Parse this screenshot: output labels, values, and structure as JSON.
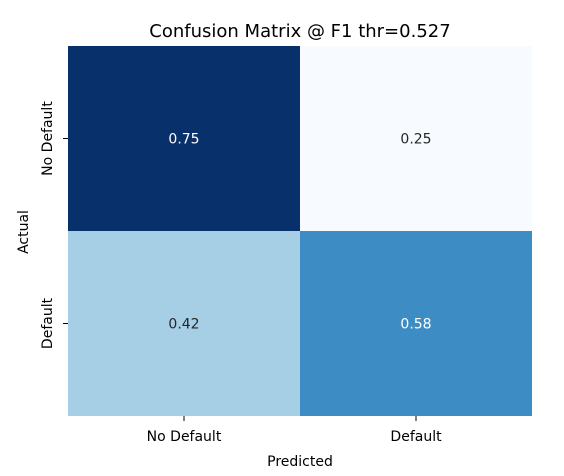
{
  "chart_data": {
    "type": "heatmap",
    "title": "Confusion Matrix @ F1 thr=0.527",
    "xlabel": "Predicted",
    "ylabel": "Actual",
    "x_categories": [
      "No Default",
      "Default"
    ],
    "y_categories": [
      "No Default",
      "Default"
    ],
    "values": [
      [
        0.75,
        0.25
      ],
      [
        0.42,
        0.58
      ]
    ],
    "value_labels": [
      [
        "0.75",
        "0.25"
      ],
      [
        "0.42",
        "0.58"
      ]
    ],
    "colormap": "Blues",
    "colors": [
      [
        "#08306b",
        "#f7fbff"
      ],
      [
        "#a6cee4",
        "#3d8dc4"
      ]
    ],
    "label_colors": [
      [
        "#ffffff",
        "#262626"
      ],
      [
        "#262626",
        "#ffffff"
      ]
    ],
    "colorbar": false,
    "grid": false
  }
}
